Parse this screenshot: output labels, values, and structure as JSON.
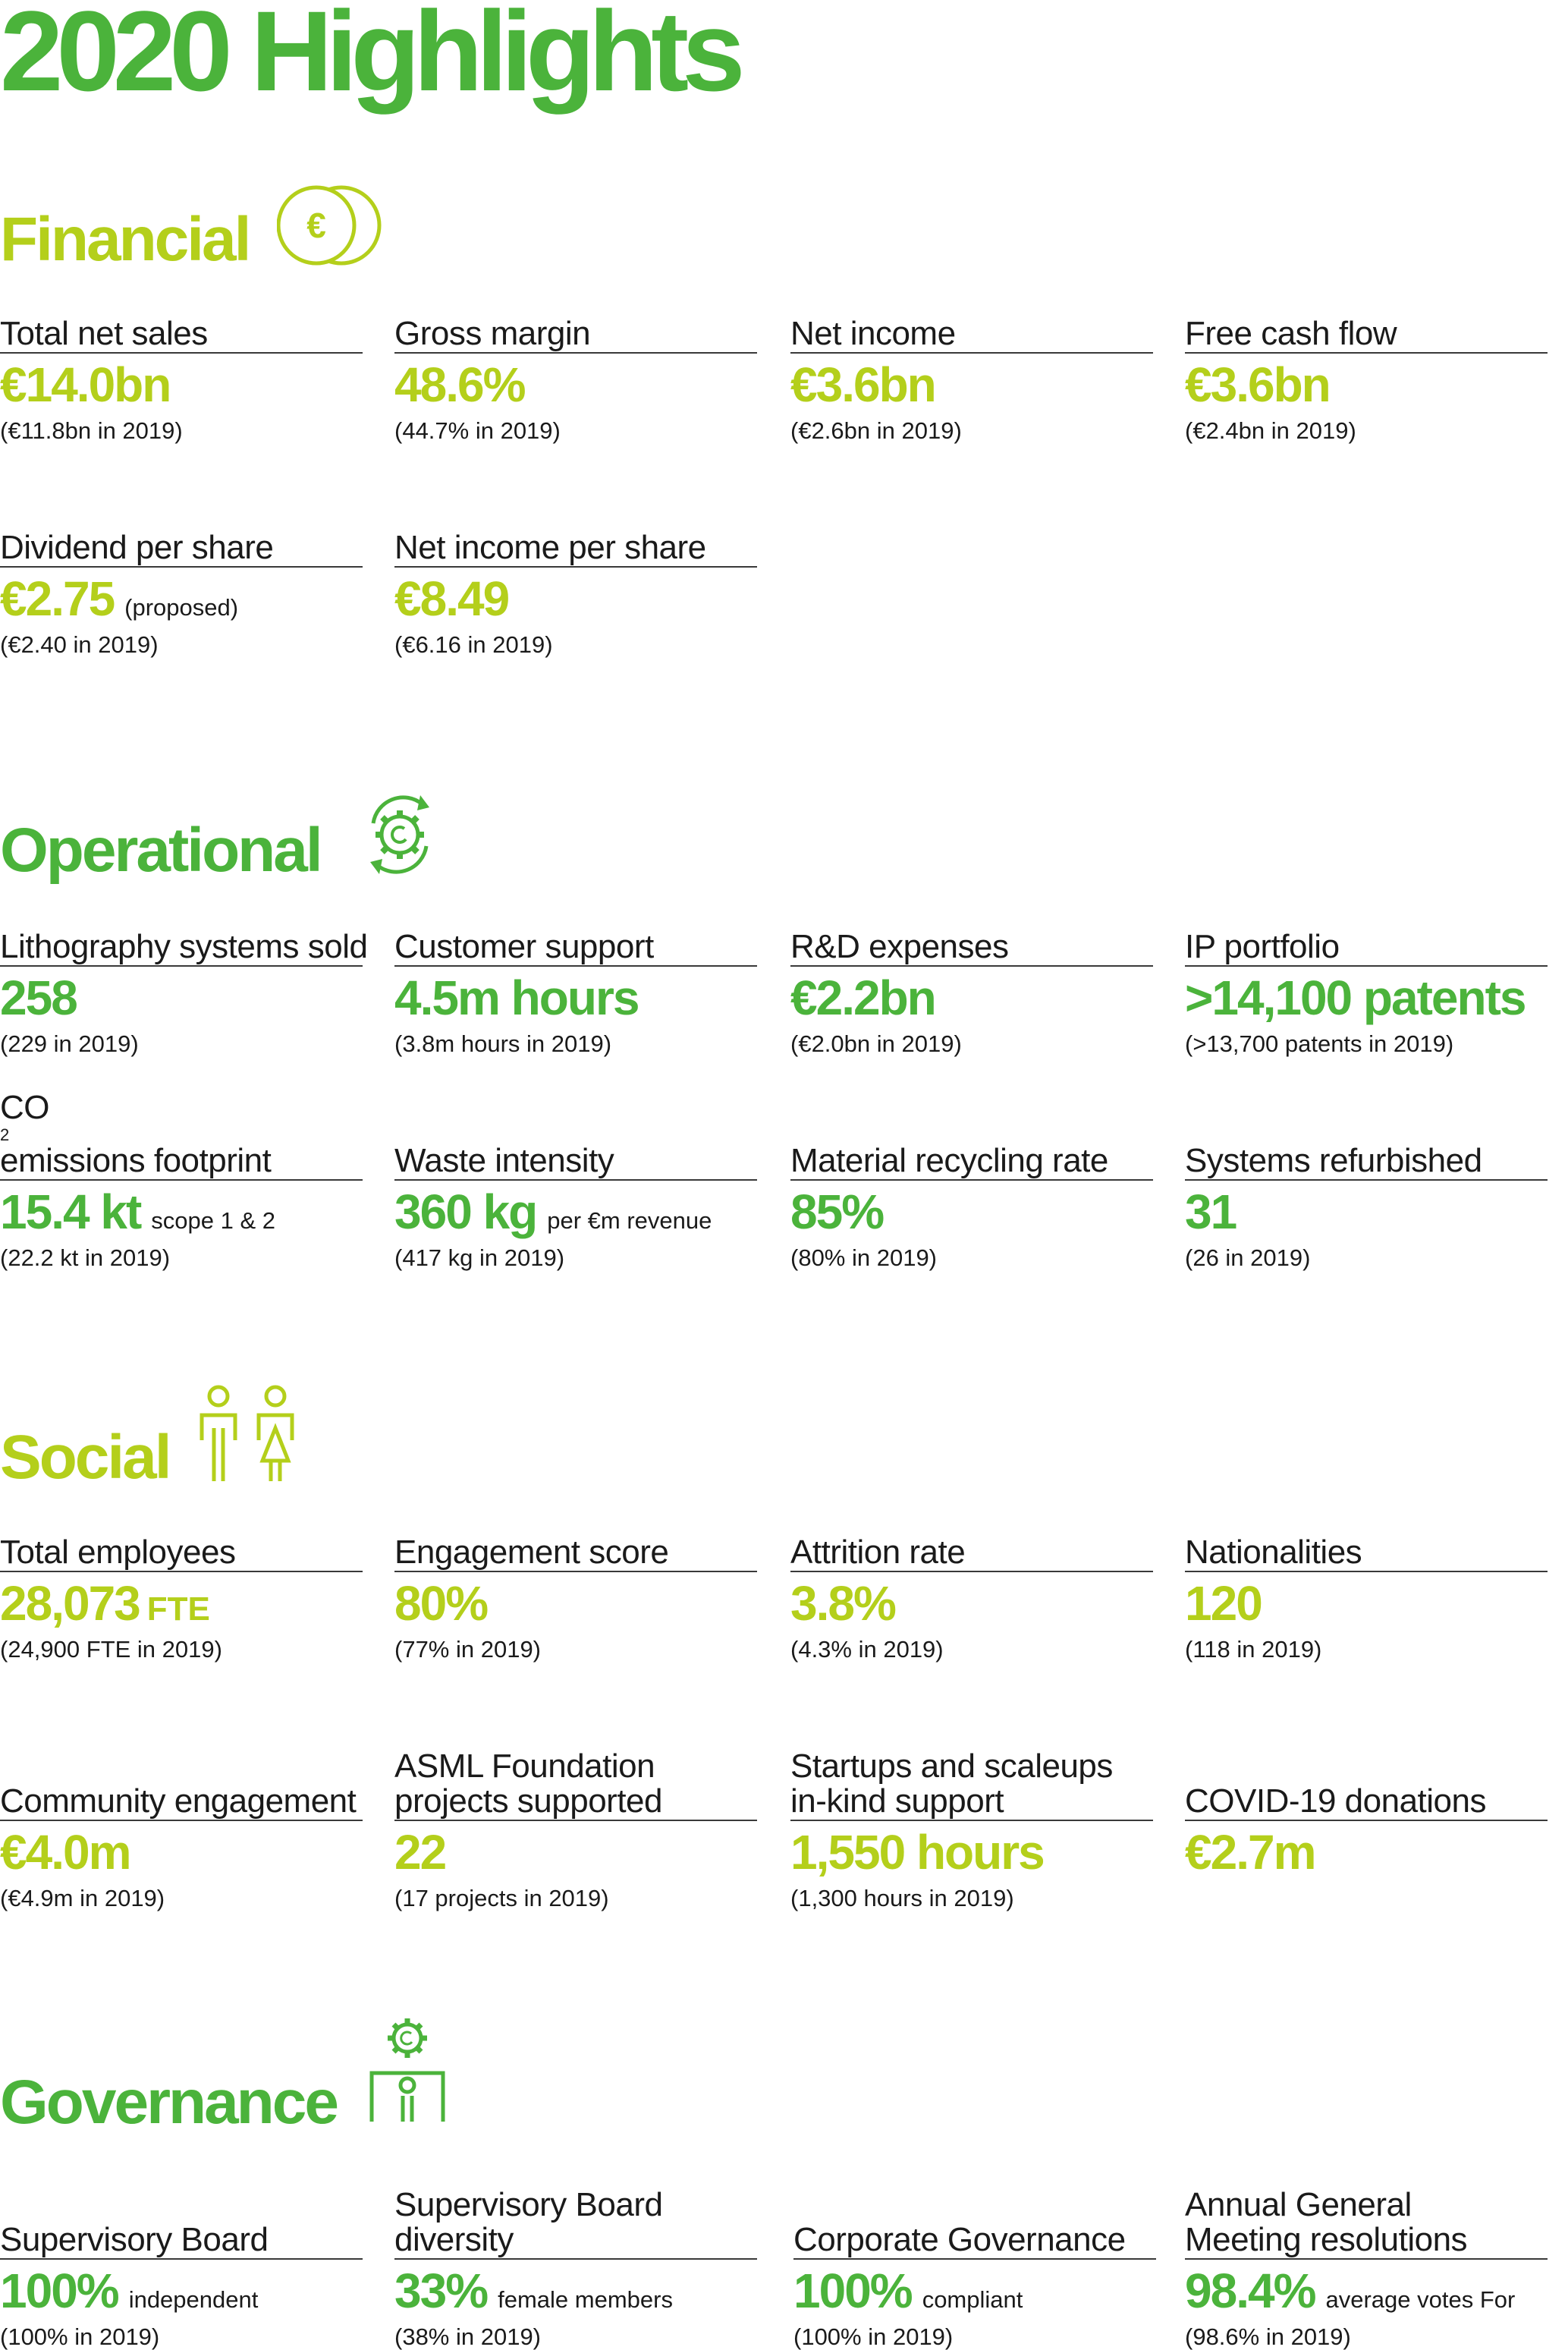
{
  "title": "2020 Highlights",
  "colors": {
    "green": "#4bb33b",
    "lime": "#b4cf1b",
    "text": "#1a1a1a",
    "rule": "#3a3a3a"
  },
  "sections": {
    "financial": {
      "title": "Financial",
      "icon": "euro-coins-icon",
      "kpis": [
        {
          "label": "Total net sales",
          "value": "€14.0bn",
          "note": "",
          "sub": "(€11.8bn in 2019)"
        },
        {
          "label": "Gross margin",
          "value": "48.6%",
          "note": "",
          "sub": "(44.7% in 2019)"
        },
        {
          "label": "Net income",
          "value": "€3.6bn",
          "note": "",
          "sub": "(€2.6bn in 2019)"
        },
        {
          "label": "Free cash flow",
          "value": "€3.6bn",
          "note": "",
          "sub": "(€2.4bn in 2019)"
        },
        {
          "label": "Dividend per share",
          "value": "€2.75",
          "note": "(proposed)",
          "sub": "(€2.40 in 2019)"
        },
        {
          "label": "Net income per share",
          "value": "€8.49",
          "note": "",
          "sub": "(€6.16 in 2019)"
        }
      ]
    },
    "operational": {
      "title": "Operational",
      "icon": "gear-cycle-icon",
      "kpis": [
        {
          "label": "Lithography systems sold",
          "value": "258",
          "note": "",
          "sub": "(229 in 2019)"
        },
        {
          "label": "Customer support",
          "value": "4.5m hours",
          "note": "",
          "sub": "(3.8m hours in 2019)"
        },
        {
          "label": "R&D expenses",
          "value": "€2.2bn",
          "note": "",
          "sub": "(€2.0bn in 2019)"
        },
        {
          "label": "IP portfolio",
          "value": ">14,100 patents",
          "note": "",
          "sub": "(>13,700 patents in 2019)"
        },
        {
          "label_main": "CO",
          "label_sub": "2",
          "label_rest": " emissions footprint",
          "value": "15.4 kt",
          "note": "scope 1 & 2",
          "sub": "(22.2 kt in 2019)"
        },
        {
          "label": "Waste intensity",
          "value": "360 kg",
          "note": "per €m revenue",
          "sub": "(417 kg in 2019)"
        },
        {
          "label": "Material recycling rate",
          "value": "85%",
          "note": "",
          "sub": "(80% in 2019)"
        },
        {
          "label": "Systems refurbished",
          "value": "31",
          "note": "",
          "sub": "(26 in 2019)"
        }
      ]
    },
    "social": {
      "title": "Social",
      "icon": "people-icon",
      "kpis": [
        {
          "label": "Total employees",
          "value": "28,073",
          "unit": "FTE",
          "note": "",
          "sub": "(24,900 FTE in 2019)"
        },
        {
          "label": "Engagement score",
          "value": "80%",
          "note": "",
          "sub": "(77% in 2019)"
        },
        {
          "label": "Attrition rate",
          "value": "3.8%",
          "note": "",
          "sub": "(4.3% in 2019)"
        },
        {
          "label": "Nationalities",
          "value": "120",
          "note": "",
          "sub": "(118 in 2019)"
        },
        {
          "label": "Community engagement",
          "value": "€4.0m",
          "note": "",
          "sub": "(€4.9m in 2019)"
        },
        {
          "label_line1": "ASML Foundation",
          "label_line2": "projects supported",
          "value": "22",
          "note": "",
          "sub": "(17 projects in 2019)"
        },
        {
          "label_line1": "Startups and scaleups",
          "label_line2": "in-kind support",
          "value": "1,550 hours",
          "note": "",
          "sub": "(1,300 hours in 2019)"
        },
        {
          "label": "COVID-19 donations",
          "value": "€2.7m",
          "note": "",
          "sub": ""
        }
      ]
    },
    "governance": {
      "title": "Governance",
      "icon": "governance-icon",
      "kpis": [
        {
          "label": "Supervisory Board",
          "value": "100%",
          "note": "independent",
          "sub": "(100% in 2019)"
        },
        {
          "label_line1": "Supervisory Board",
          "label_line2": "diversity",
          "value": "33%",
          "note": "female members",
          "sub": "(38% in 2019)"
        },
        {
          "label": "Corporate Governance",
          "value": "100%",
          "note": "compliant",
          "sub": "(100% in 2019)"
        },
        {
          "label_line1": "Annual General",
          "label_line2": "Meeting resolutions",
          "value": "98.4%",
          "note": "average votes For",
          "sub": "(98.6% in 2019)"
        }
      ]
    }
  }
}
